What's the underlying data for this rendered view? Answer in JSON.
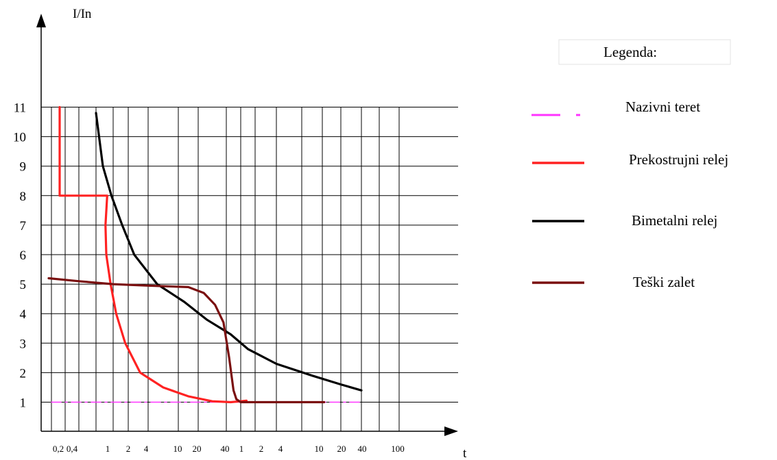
{
  "chart_data": {
    "type": "line",
    "ylabel": "I/In",
    "xlabel": "t",
    "ylim": [
      0,
      11
    ],
    "y_ticks": [
      "1",
      "2",
      "3",
      "4",
      "5",
      "6",
      "7",
      "8",
      "9",
      "10",
      "11"
    ],
    "x_tick_labels": [
      "0,2",
      "0,4",
      "1",
      "2",
      "4",
      "10",
      "20",
      "40",
      "1",
      "2",
      "4",
      "10",
      "20",
      "40",
      "100"
    ],
    "grid": true,
    "legend_title": "Legenda:",
    "legend_position": "right",
    "series": [
      {
        "name": "Nazivni teret",
        "color": "#ff33ff",
        "style": "dash-dot",
        "points": [
          [
            0.0,
            1.0
          ],
          [
            16.0,
            1.0
          ]
        ]
      },
      {
        "name": "Prekostrujni relej",
        "color": "#ff2222",
        "style": "solid",
        "points": [
          [
            0.6,
            11.0
          ],
          [
            0.6,
            8.0
          ],
          [
            3.65,
            8.0
          ],
          [
            3.55,
            7.0
          ],
          [
            3.6,
            6.0
          ],
          [
            3.85,
            5.0
          ],
          [
            4.2,
            4.0
          ],
          [
            4.8,
            3.0
          ],
          [
            5.6,
            2.0
          ],
          [
            6.5,
            1.5
          ],
          [
            7.5,
            1.2
          ],
          [
            8.5,
            1.03
          ],
          [
            9.3,
            1.0
          ],
          [
            10.0,
            1.03
          ],
          [
            10.4,
            1.05
          ]
        ]
      },
      {
        "name": "Bimetalni relej",
        "color": "#000000",
        "style": "solid",
        "points": [
          [
            3.0,
            10.8
          ],
          [
            3.4,
            9.0
          ],
          [
            3.9,
            8.0
          ],
          [
            4.6,
            7.0
          ],
          [
            5.3,
            6.0
          ],
          [
            6.3,
            5.0
          ],
          [
            7.3,
            4.4
          ],
          [
            8.3,
            3.8
          ],
          [
            9.3,
            3.3
          ],
          [
            10.5,
            2.8
          ],
          [
            12.0,
            2.3
          ],
          [
            13.5,
            1.9
          ],
          [
            15.0,
            1.6
          ],
          [
            16.0,
            1.4
          ]
        ]
      },
      {
        "name": "Teški zalet",
        "color": "#7a0f0f",
        "style": "solid",
        "points": [
          [
            -0.2,
            5.2
          ],
          [
            2.0,
            5.1
          ],
          [
            4.0,
            5.0
          ],
          [
            6.0,
            4.95
          ],
          [
            7.5,
            4.9
          ],
          [
            8.2,
            4.7
          ],
          [
            8.6,
            4.3
          ],
          [
            8.9,
            3.7
          ],
          [
            9.2,
            2.5
          ],
          [
            9.5,
            1.4
          ],
          [
            9.7,
            1.1
          ],
          [
            10.0,
            1.0
          ],
          [
            12.0,
            1.0
          ],
          [
            14.1,
            1.0
          ]
        ]
      }
    ]
  }
}
